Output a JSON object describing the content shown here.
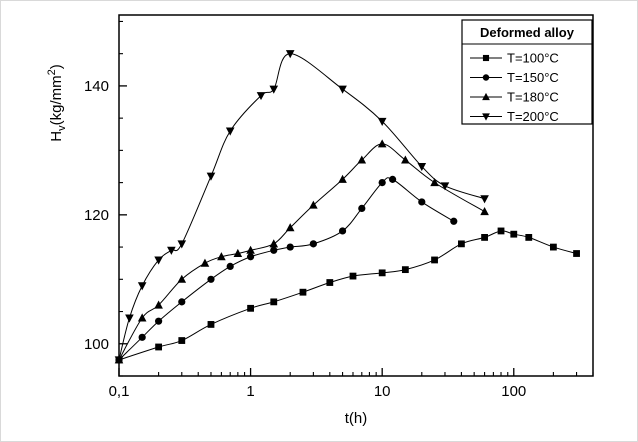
{
  "figure": {
    "background": "#ffffff",
    "border_color": "#d9d9d9"
  },
  "chart_data": {
    "type": "line",
    "title": "",
    "xlabel": "t(h)",
    "ylabel": "Hv(kg/mm2)",
    "ylabel_rich": [
      {
        "t": "H"
      },
      {
        "t": "v",
        "pos": "sub"
      },
      {
        "t": "(kg/mm"
      },
      {
        "t": "2",
        "pos": "sup"
      },
      {
        "t": ")"
      }
    ],
    "x_scale": "log",
    "xlim": [
      0.1,
      400
    ],
    "ylim": [
      95,
      151
    ],
    "x_ticks": [
      {
        "value": 0.1,
        "label": "0,1"
      },
      {
        "value": 1,
        "label": "1"
      },
      {
        "value": 10,
        "label": "10"
      },
      {
        "value": 100,
        "label": "100"
      }
    ],
    "y_ticks": [
      {
        "value": 100,
        "label": "100"
      },
      {
        "value": 120,
        "label": "120"
      },
      {
        "value": 140,
        "label": "140"
      }
    ],
    "y_minor_step": 5,
    "grid": false,
    "line_color": "#000000",
    "marker_color": "#000000",
    "legend": {
      "title": "Deformed alloy",
      "position": "top-right"
    },
    "series": [
      {
        "name": "T=100°C",
        "marker": "square",
        "points": [
          [
            0.1,
            97.5
          ],
          [
            0.2,
            99.5
          ],
          [
            0.3,
            100.5
          ],
          [
            0.5,
            103
          ],
          [
            1,
            105.5
          ],
          [
            1.5,
            106.5
          ],
          [
            2.5,
            108
          ],
          [
            4,
            109.5
          ],
          [
            6,
            110.5
          ],
          [
            10,
            111
          ],
          [
            15,
            111.5
          ],
          [
            25,
            113
          ],
          [
            40,
            115.5
          ],
          [
            60,
            116.5
          ],
          [
            80,
            117.5
          ],
          [
            100,
            117
          ],
          [
            130,
            116.5
          ],
          [
            200,
            115
          ],
          [
            300,
            114
          ]
        ]
      },
      {
        "name": "T=150°C",
        "marker": "circle",
        "points": [
          [
            0.1,
            97.5
          ],
          [
            0.15,
            101
          ],
          [
            0.2,
            103.5
          ],
          [
            0.3,
            106.5
          ],
          [
            0.5,
            110
          ],
          [
            0.7,
            112
          ],
          [
            1,
            113.5
          ],
          [
            1.5,
            114.5
          ],
          [
            2,
            115
          ],
          [
            3,
            115.5
          ],
          [
            5,
            117.5
          ],
          [
            7,
            121
          ],
          [
            10,
            125
          ],
          [
            12,
            125.5
          ],
          [
            20,
            122
          ],
          [
            35,
            119
          ]
        ]
      },
      {
        "name": "T=180°C",
        "marker": "triangle-up",
        "points": [
          [
            0.1,
            97.5
          ],
          [
            0.15,
            104
          ],
          [
            0.2,
            106
          ],
          [
            0.3,
            110
          ],
          [
            0.45,
            112.5
          ],
          [
            0.6,
            113.5
          ],
          [
            0.8,
            114
          ],
          [
            1,
            114.5
          ],
          [
            1.5,
            115.5
          ],
          [
            2,
            118
          ],
          [
            3,
            121.5
          ],
          [
            5,
            125.5
          ],
          [
            7,
            128.5
          ],
          [
            10,
            131
          ],
          [
            15,
            128.5
          ],
          [
            25,
            125
          ],
          [
            60,
            120.5
          ]
        ]
      },
      {
        "name": "T=200°C",
        "marker": "triangle-down",
        "points": [
          [
            0.1,
            97.5
          ],
          [
            0.12,
            104
          ],
          [
            0.15,
            109
          ],
          [
            0.2,
            113
          ],
          [
            0.25,
            114.5
          ],
          [
            0.3,
            115.5
          ],
          [
            0.5,
            126
          ],
          [
            0.7,
            133
          ],
          [
            1.2,
            138.5
          ],
          [
            1.5,
            139.5
          ],
          [
            2,
            145
          ],
          [
            5,
            139.5
          ],
          [
            10,
            134.5
          ],
          [
            20,
            127.5
          ],
          [
            30,
            124.5
          ],
          [
            60,
            122.5
          ]
        ]
      }
    ]
  }
}
